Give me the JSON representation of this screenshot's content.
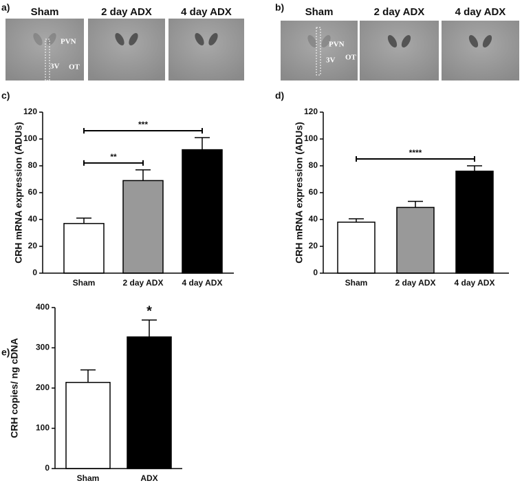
{
  "images": [
    {
      "letter": "a)",
      "columns": [
        "Sham",
        "2 day ADX",
        "4 day ADX"
      ],
      "annotations": [
        "PVN",
        "3V",
        "OT"
      ]
    },
    {
      "letter": "b)",
      "columns": [
        "Sham",
        "2 day ADX",
        "4 day ADX"
      ],
      "annotations": [
        "PVN",
        "3V",
        "OT"
      ]
    }
  ],
  "chart_data": [
    {
      "type": "bar",
      "letter": "c)",
      "ylabel": "CRH mRNA expression (ADUs)",
      "categories": [
        "Sham",
        "2 day ADX",
        "4 day ADX"
      ],
      "values": [
        37,
        69,
        92
      ],
      "errors": [
        4,
        8,
        9
      ],
      "colors": [
        "#ffffff",
        "#999999",
        "#000000"
      ],
      "ylim": [
        0,
        120
      ],
      "yticks": [
        0,
        20,
        40,
        60,
        80,
        100,
        120
      ],
      "significance": [
        {
          "label": "**",
          "from": "Sham",
          "to": "2 day ADX"
        },
        {
          "label": "***",
          "from": "Sham",
          "to": "4 day ADX"
        }
      ]
    },
    {
      "type": "bar",
      "letter": "d)",
      "ylabel": "CRH mRNA expression (ADUs)",
      "categories": [
        "Sham",
        "2 day ADX",
        "4 day ADX"
      ],
      "values": [
        38,
        49,
        76
      ],
      "errors": [
        2.5,
        4.5,
        4
      ],
      "colors": [
        "#ffffff",
        "#999999",
        "#000000"
      ],
      "ylim": [
        0,
        120
      ],
      "yticks": [
        0,
        20,
        40,
        60,
        80,
        100,
        120
      ],
      "significance": [
        {
          "label": "****",
          "from": "Sham",
          "to": "4 day ADX"
        }
      ]
    },
    {
      "type": "bar",
      "letter": "e)",
      "ylabel": "CRH copies/ ng cDNA",
      "categories": [
        "Sham",
        "ADX"
      ],
      "values": [
        214,
        327
      ],
      "errors": [
        31,
        42
      ],
      "colors": [
        "#ffffff",
        "#000000"
      ],
      "ylim": [
        0,
        400
      ],
      "yticks": [
        0,
        100,
        200,
        300,
        400
      ],
      "significance": [
        {
          "label": "*",
          "from": "ADX",
          "to": "ADX"
        }
      ]
    }
  ]
}
